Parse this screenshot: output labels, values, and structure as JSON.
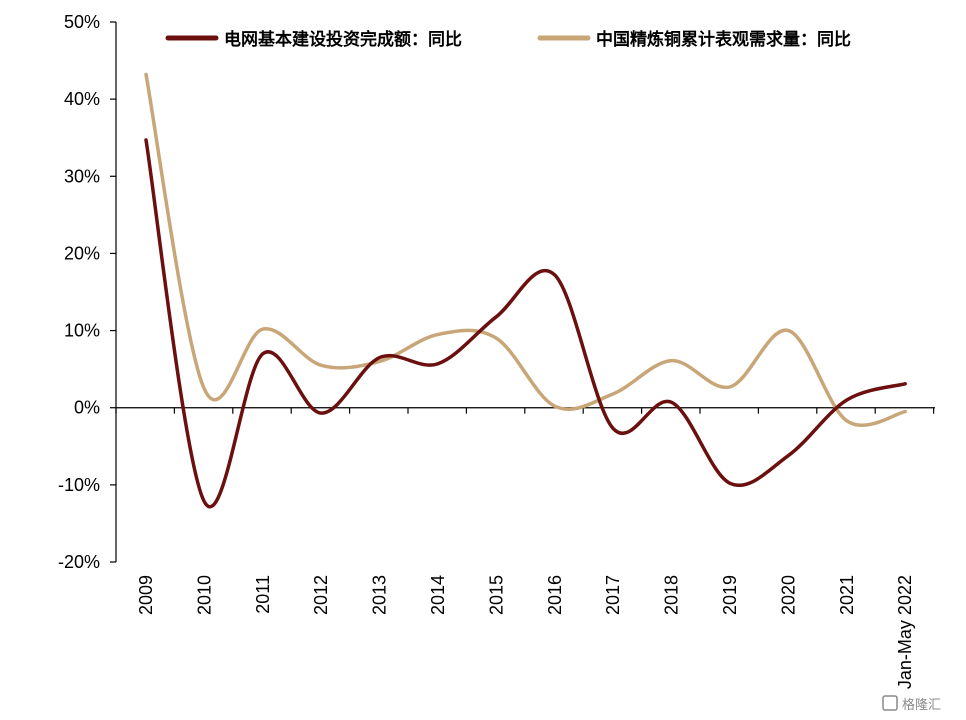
{
  "chart_data": {
    "type": "line",
    "title": "",
    "xlabel": "",
    "ylabel": "",
    "categories": [
      "2009",
      "2010",
      "2011",
      "2012",
      "2013",
      "2014",
      "2015",
      "2016",
      "2017",
      "2018",
      "2019",
      "2020",
      "2021",
      "Jan-May 2022"
    ],
    "ylim": [
      -0.2,
      0.5
    ],
    "yticks": [
      -0.2,
      -0.1,
      0.0,
      0.1,
      0.2,
      0.3,
      0.4,
      0.5
    ],
    "ytick_labels": [
      "-20%",
      "-10%",
      "0%",
      "10%",
      "20%",
      "30%",
      "40%",
      "50%"
    ],
    "grid": false,
    "legend_position": "top",
    "series": [
      {
        "name": "电网基本建设投资完成额：同比",
        "color": "#6b0f0f",
        "values": [
          0.347,
          -0.122,
          0.07,
          -0.007,
          0.065,
          0.057,
          0.118,
          0.172,
          -0.027,
          0.007,
          -0.098,
          -0.062,
          0.01,
          0.031
        ]
      },
      {
        "name": "中国精炼铜累计表观需求量：同比",
        "color": "#c8a678",
        "values": [
          0.432,
          0.024,
          0.102,
          0.055,
          0.06,
          0.095,
          0.09,
          0.002,
          0.018,
          0.061,
          0.027,
          0.1,
          -0.017,
          -0.005
        ]
      }
    ]
  },
  "watermark": "格隆汇"
}
